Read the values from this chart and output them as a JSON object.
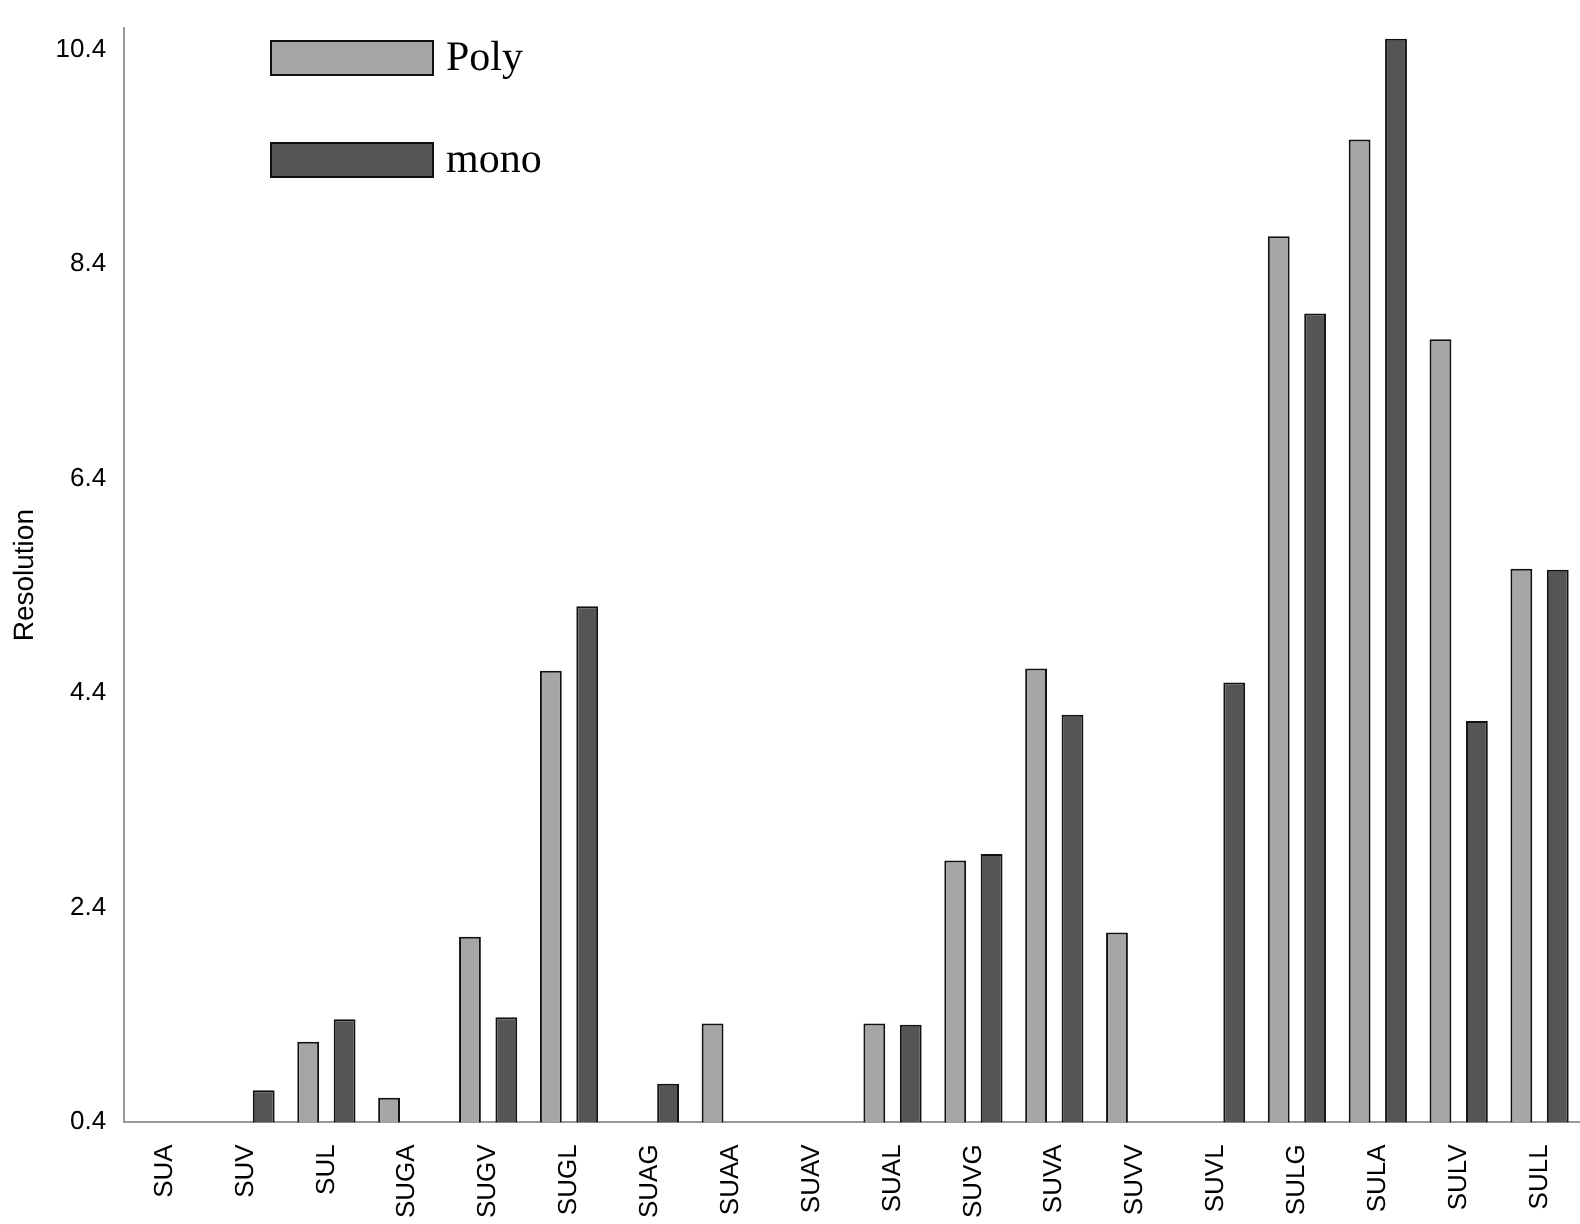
{
  "chart_data": {
    "type": "bar",
    "ylabel": "Resolution",
    "categories": [
      "SUA",
      "SUV",
      "SUL",
      "SUGA",
      "SUGV",
      "SUGL",
      "SUAG",
      "SUAA",
      "SUAV",
      "SUAL",
      "SUVG",
      "SUVA",
      "SUVV",
      "SUVL",
      "SULG",
      "SULA",
      "SULV",
      "SULL"
    ],
    "series": [
      {
        "name": "Poly",
        "color": "#a6a6a6",
        "values": [
          0.4,
          0.4,
          1.15,
          0.63,
          2.13,
          4.61,
          0.4,
          1.32,
          0.4,
          1.32,
          2.84,
          4.63,
          2.17,
          0.4,
          8.66,
          9.56,
          7.7,
          5.56
        ]
      },
      {
        "name": "mono",
        "color": "#555555",
        "values": [
          0.4,
          0.7,
          1.36,
          0.4,
          1.38,
          5.21,
          0.76,
          0.4,
          0.4,
          1.31,
          2.9,
          4.2,
          0.4,
          4.5,
          7.94,
          10.5,
          4.14,
          5.55
        ]
      }
    ],
    "ylim": [
      0.4,
      10.6
    ],
    "yticks": [
      0.4,
      2.4,
      4.4,
      6.4,
      8.4,
      10.4
    ],
    "grid": false,
    "legend": "top left"
  }
}
